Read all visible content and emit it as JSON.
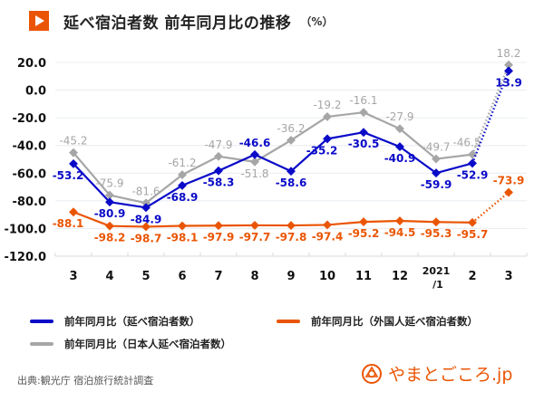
{
  "title": {
    "text": "延べ宿泊者数 前年同月比の推移",
    "unit": "（%）",
    "icon": "play-triangle-icon",
    "accent_color": "#ea5504"
  },
  "legend": [
    {
      "label": "前年同月比（延べ宿泊者数）",
      "color": "#0a0ac8"
    },
    {
      "label": "前年同月比（外国人延べ宿泊者数）",
      "color": "#ea5504"
    },
    {
      "label": "前年同月比（日本人延べ宿泊者数）",
      "color": "#a6a6a6"
    }
  ],
  "source": "出典:観光庁 宿泊旅行統計調査",
  "logo": {
    "text": "やまとごころ.jp",
    "icon": "yamatogokoro-logo-icon",
    "color": "#ea5504"
  },
  "chart_data": {
    "type": "line",
    "title": "延べ宿泊者数 前年同月比の推移",
    "xlabel": "",
    "ylabel": "%",
    "categories": [
      "3",
      "4",
      "5",
      "6",
      "7",
      "8",
      "9",
      "10",
      "11",
      "12",
      "2021\n/1",
      "2",
      "3"
    ],
    "ylim": [
      -120,
      20
    ],
    "yticks": [
      20,
      0,
      -20,
      -40,
      -60,
      -80,
      -100,
      -120
    ],
    "ytick_labels": [
      "20.0",
      "0.0",
      "-20.0",
      "-40.0",
      "-60.0",
      "-80.0",
      "-100.0",
      "-120.0"
    ],
    "grid": true,
    "legend_position": "bottom",
    "last_segment_style": "dotted",
    "series": [
      {
        "name": "前年同月比（日本人延べ宿泊者数）",
        "color": "#a6a6a6",
        "values": [
          -45.2,
          -75.9,
          -81.6,
          -61.2,
          -47.9,
          -51.8,
          -36.2,
          -19.2,
          -16.1,
          -27.9,
          -49.7,
          -46.5,
          18.2
        ],
        "labels": [
          "-45.2",
          "-75.9",
          "-81.6",
          "-61.2",
          "-47.9",
          "-51.8",
          "-36.2",
          "-19.2",
          "-16.1",
          "-27.9",
          "-49.7",
          "-46.5",
          "18.2"
        ]
      },
      {
        "name": "前年同月比（延べ宿泊者数）",
        "color": "#0a0ac8",
        "values": [
          -53.2,
          -80.9,
          -84.9,
          -68.9,
          -58.3,
          -46.6,
          -58.6,
          -35.2,
          -30.5,
          -40.9,
          -59.9,
          -52.9,
          13.9
        ],
        "labels": [
          "-53.2",
          "-80.9",
          "-84.9",
          "-68.9",
          "-58.3",
          "-46.6",
          "-58.6",
          "-35.2",
          "-30.5",
          "-40.9",
          "-59.9",
          "-52.9",
          "13.9"
        ]
      },
      {
        "name": "前年同月比（外国人延べ宿泊者数）",
        "color": "#ea5504",
        "values": [
          -88.1,
          -98.2,
          -98.7,
          -98.1,
          -97.9,
          -97.7,
          -97.8,
          -97.4,
          -95.2,
          -94.5,
          -95.3,
          -95.7,
          -73.9
        ],
        "labels": [
          "-88.1",
          "-98.2",
          "-98.7",
          "-98.1",
          "-97.9",
          "-97.7",
          "-97.8",
          "-97.4",
          "-95.2",
          "-94.5",
          "-95.3",
          "-95.7",
          "-73.9"
        ]
      }
    ]
  }
}
